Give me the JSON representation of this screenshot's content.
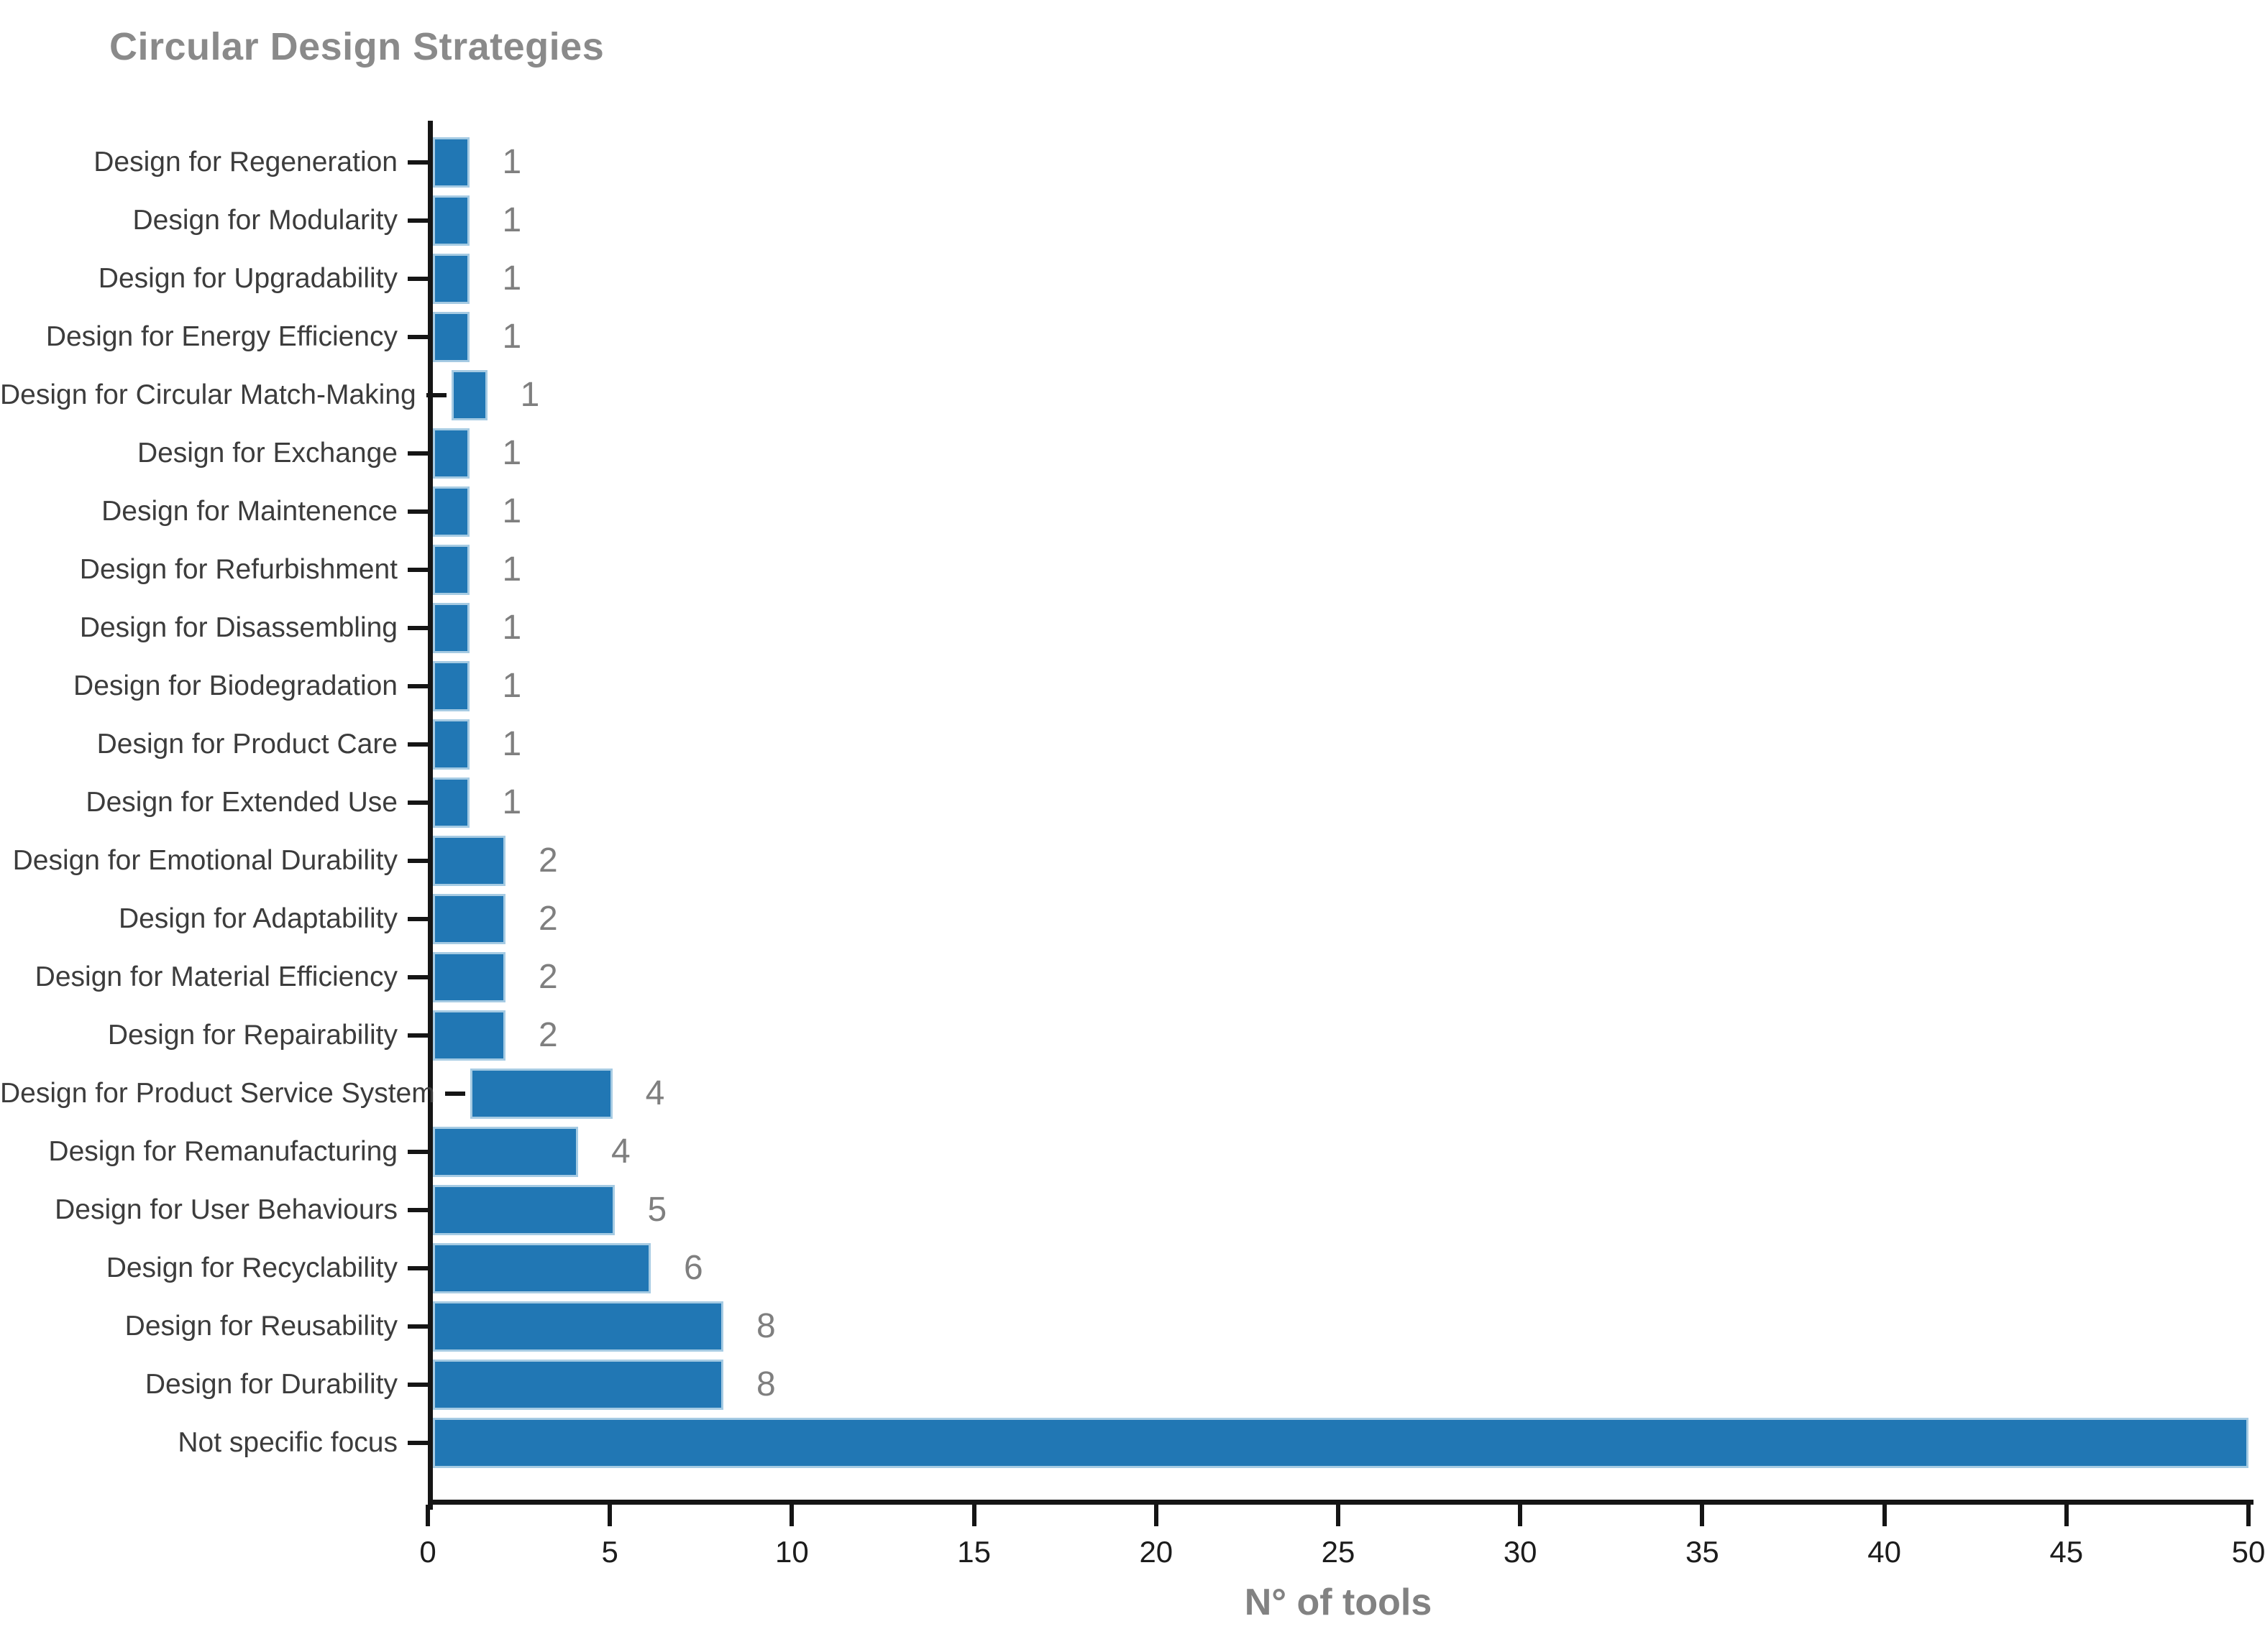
{
  "title": "Circular Design Strategies",
  "xlabel": "N° of tools",
  "chart_data": {
    "type": "bar",
    "orientation": "horizontal",
    "title": "Circular Design Strategies",
    "xlabel": "N° of tools",
    "ylabel": "",
    "xlim": [
      0,
      50
    ],
    "x_ticks": [
      "0",
      "5",
      "10",
      "15",
      "20",
      "25",
      "30",
      "35",
      "40",
      "45",
      "50"
    ],
    "grid": false,
    "legend": false,
    "categories": [
      "Design for Regeneration",
      "Design for Modularity",
      "Design for Upgradability",
      "Design for Energy Efficiency",
      "Design for Circular Match-Making",
      "Design for Exchange",
      "Design for Maintenence",
      "Design for Refurbishment",
      "Design for Disassembling",
      "Design for Biodegradation",
      "Design for Product Care",
      "Design for Extended Use",
      "Design for Emotional Durability",
      "Design for Adaptability",
      "Design for Material Efficiency",
      "Design for Repairability",
      "Design for Product Service System",
      "Design for Remanufacturing",
      "Design for User Behaviours",
      "Design for Recyclability",
      "Design for Reusability",
      "Design for Durability",
      "Not specific focus"
    ],
    "values": [
      1,
      1,
      1,
      1,
      1,
      1,
      1,
      1,
      1,
      1,
      1,
      1,
      2,
      2,
      2,
      2,
      4,
      4,
      5,
      6,
      8,
      8,
      50
    ],
    "bar_labels": [
      "1",
      "1",
      "1",
      "1",
      "1",
      "1",
      "1",
      "1",
      "1",
      "1",
      "1",
      "1",
      "2",
      "2",
      "2",
      "2",
      "4",
      "4",
      "5",
      "6",
      "8",
      "8",
      ""
    ]
  },
  "colors": {
    "background": "#ffffff",
    "bar_fill": "#2177b4",
    "bar_edge": "#a6cbe3",
    "title": "#8a8a8a",
    "category_label": "#3c3c3c",
    "value_label": "#7f7f7f",
    "tick_label": "#1c1c1c",
    "axis": "#151515",
    "xlabel": "#828282"
  }
}
